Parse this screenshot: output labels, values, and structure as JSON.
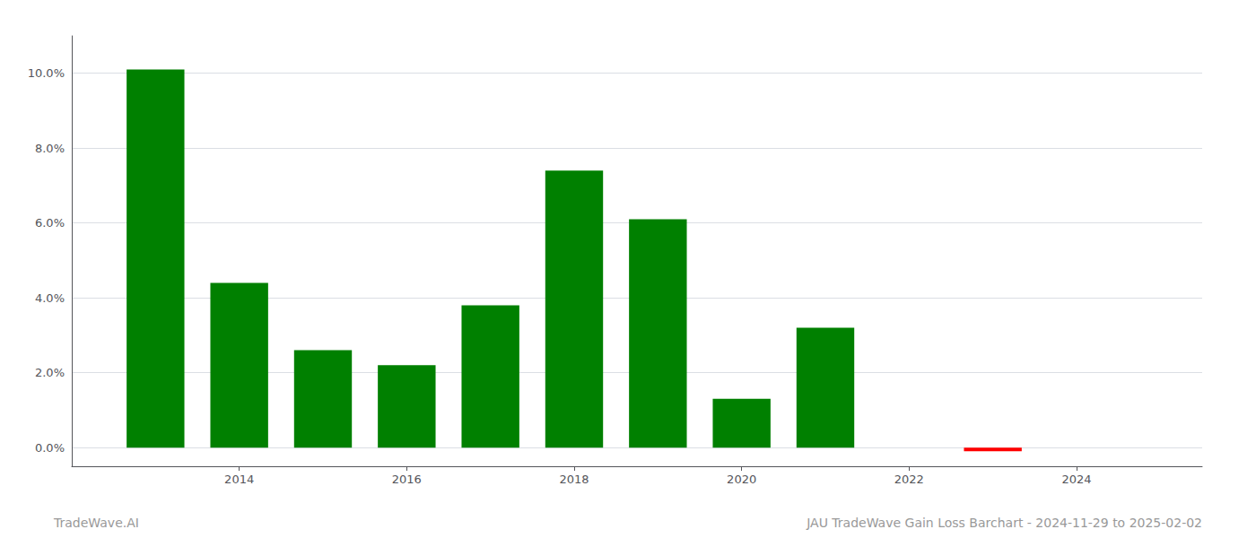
{
  "chart_data": {
    "type": "bar",
    "x": [
      2013,
      2014,
      2015,
      2016,
      2017,
      2018,
      2019,
      2020,
      2021,
      2023
    ],
    "values": [
      0.101,
      0.044,
      0.026,
      0.022,
      0.038,
      0.074,
      0.061,
      0.013,
      0.032,
      -0.001
    ],
    "colors": [
      "#008000",
      "#008000",
      "#008000",
      "#008000",
      "#008000",
      "#008000",
      "#008000",
      "#008000",
      "#008000",
      "#ff0000"
    ],
    "xlim": [
      2012.0,
      2025.5
    ],
    "xticks": [
      2014,
      2016,
      2018,
      2020,
      2022,
      2024
    ],
    "ylim": [
      -0.005,
      0.11
    ],
    "yticks": [
      {
        "value": 0.0,
        "label": "0.0%"
      },
      {
        "value": 0.02,
        "label": "2.0%"
      },
      {
        "value": 0.04,
        "label": "4.0%"
      },
      {
        "value": 0.06,
        "label": "6.0%"
      },
      {
        "value": 0.08,
        "label": "8.0%"
      },
      {
        "value": 0.1,
        "label": "10.0%"
      }
    ],
    "grid": true,
    "annotations": [
      "TradeWave.AI",
      "JAU TradeWave Gain Loss Barchart - 2024-11-29 to 2025-02-02"
    ]
  }
}
